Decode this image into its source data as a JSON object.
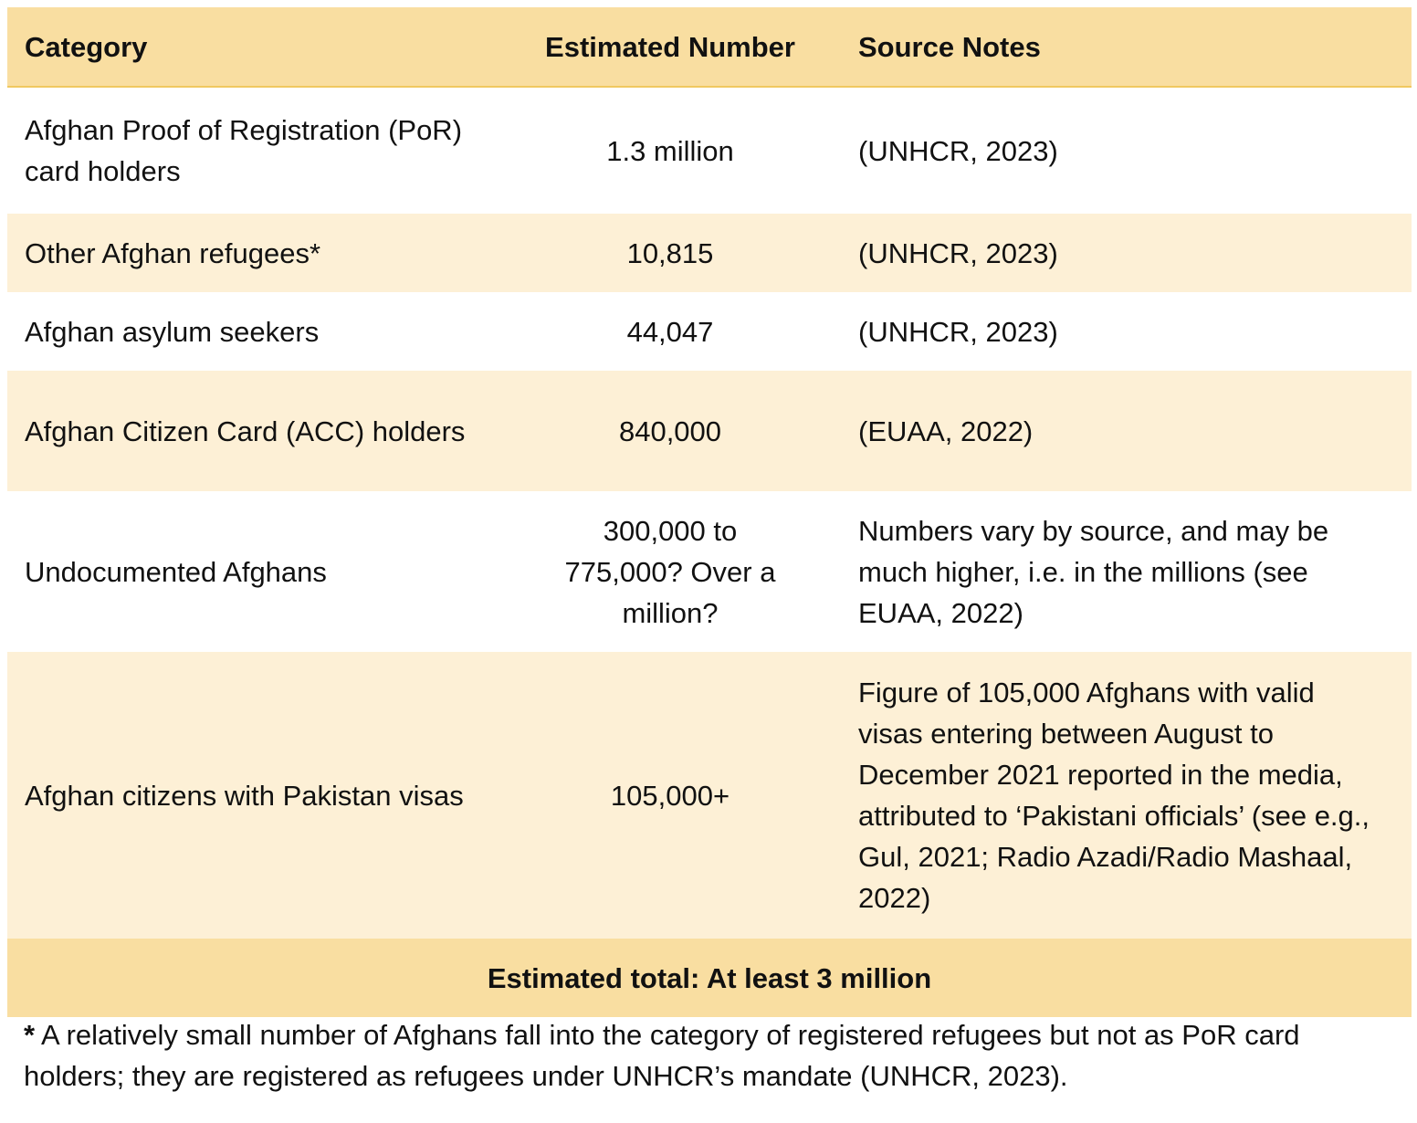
{
  "header": {
    "category": "Category",
    "estimated_number": "Estimated Number",
    "source_notes": "Source Notes"
  },
  "rows": [
    {
      "category": "Afghan Proof of Registration (PoR) card holders",
      "number": "1.3 million",
      "source": "(UNHCR, 2023)"
    },
    {
      "category": "Other Afghan refugees*",
      "number": "10,815",
      "source": "(UNHCR, 2023)"
    },
    {
      "category": "Afghan asylum seekers",
      "number": "44,047",
      "source": "(UNHCR, 2023)"
    },
    {
      "category": "Afghan Citizen Card (ACC) holders",
      "number": "840,000",
      "source": "(EUAA, 2022)"
    },
    {
      "category": "Undocumented Afghans",
      "number": "300,000 to 775,000? Over a million?",
      "source": "Numbers vary by source, and may be much higher, i.e. in the millions (see EUAA, 2022)"
    },
    {
      "category": "Afghan citizens with Pakistan visas",
      "number": "105,000+",
      "source": "Figure of 105,000 Afghans with valid visas entering between August to December 2021 reported in the media, attributed to ‘Pakistani officials’ (see e.g., Gul, 2021; Radio Azadi/Radio Mashaal, 2022)"
    }
  ],
  "total": "Estimated total: At least 3 million",
  "footnote": {
    "marker": "*",
    "text": "A relatively small number of Afghans fall into the category of registered refugees but not as PoR card holders; they are registered as refugees under UNHCR’s mandate (UNHCR, 2023)."
  },
  "colors": {
    "header_bg": "#f9dea1",
    "band_bg": "#fdf0d6",
    "white_bg": "#ffffff"
  }
}
